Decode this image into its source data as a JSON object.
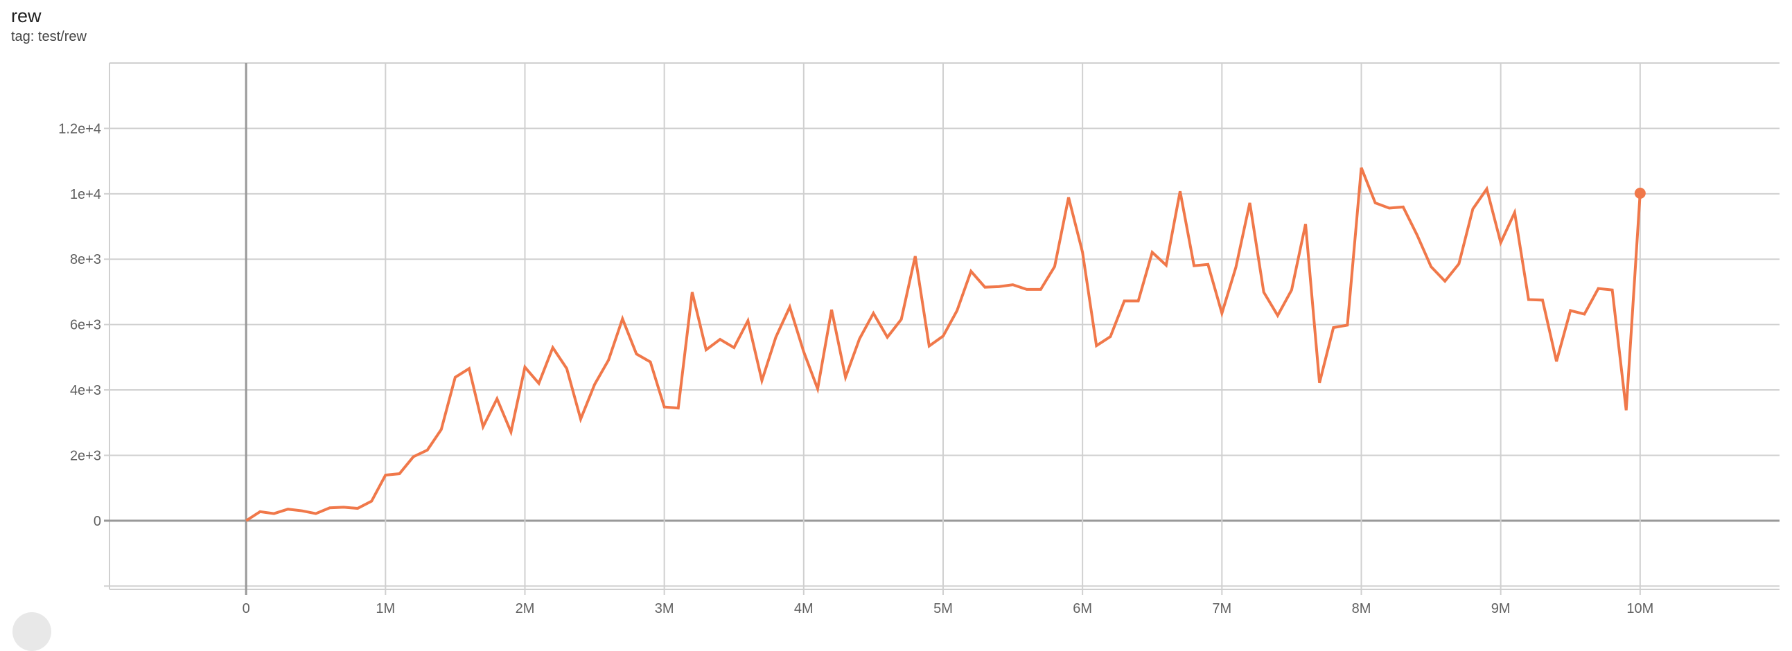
{
  "header": {
    "title": "rew",
    "subtitle": "tag: test/rew"
  },
  "colors": {
    "series": "#f0784a",
    "grid": "#d0d0d0",
    "axis": "#999999",
    "text": "#616161"
  },
  "chart_data": {
    "type": "line",
    "title": "rew",
    "subtitle": "tag: test/rew",
    "xlabel": "",
    "ylabel": "",
    "xlim": [
      -980000,
      11000000
    ],
    "ylim": [
      -2100,
      14000
    ],
    "grid": true,
    "x_ticks": [
      0,
      1000000,
      2000000,
      3000000,
      4000000,
      5000000,
      6000000,
      7000000,
      8000000,
      9000000,
      10000000
    ],
    "x_tick_labels": [
      "0",
      "1M",
      "2M",
      "3M",
      "4M",
      "5M",
      "6M",
      "7M",
      "8M",
      "9M",
      "10M"
    ],
    "y_ticks": [
      0,
      2000,
      4000,
      6000,
      8000,
      10000,
      12000
    ],
    "y_tick_labels": [
      "0",
      "2e+3",
      "4e+3",
      "6e+3",
      "8e+3",
      "1e+4",
      "1.2e+4"
    ],
    "series": [
      {
        "x_step": 100000,
        "x_start": 0,
        "values": [
          0,
          277,
          218,
          353,
          303,
          218,
          395,
          412,
          378,
          597,
          1395,
          1437,
          1958,
          2160,
          2790,
          4387,
          4655,
          2874,
          3731,
          2714,
          4697,
          4202,
          5294,
          4655,
          3109,
          4168,
          4916,
          6176,
          5101,
          4857,
          3479,
          3445,
          6991,
          5227,
          5546,
          5294,
          6118,
          4286,
          5613,
          6538,
          5168,
          4034,
          6454,
          4387,
          5563,
          6345,
          5613,
          6160,
          8092,
          5344,
          5647,
          6428,
          7630,
          7143,
          7160,
          7218,
          7075,
          7075,
          7773,
          9890,
          8210,
          5353,
          5630,
          6722,
          6722,
          8210,
          7815,
          10075,
          7798,
          7840,
          6345,
          7748,
          9722,
          6991,
          6277,
          7059,
          9075,
          4218,
          5907,
          5983,
          10798,
          9722,
          9563,
          9596,
          8739,
          7773,
          7327,
          7857,
          9537,
          10151,
          8504,
          9428,
          6764,
          6748,
          4874,
          6428,
          6319,
          7101,
          7059,
          3378,
          10017
        ]
      }
    ]
  }
}
